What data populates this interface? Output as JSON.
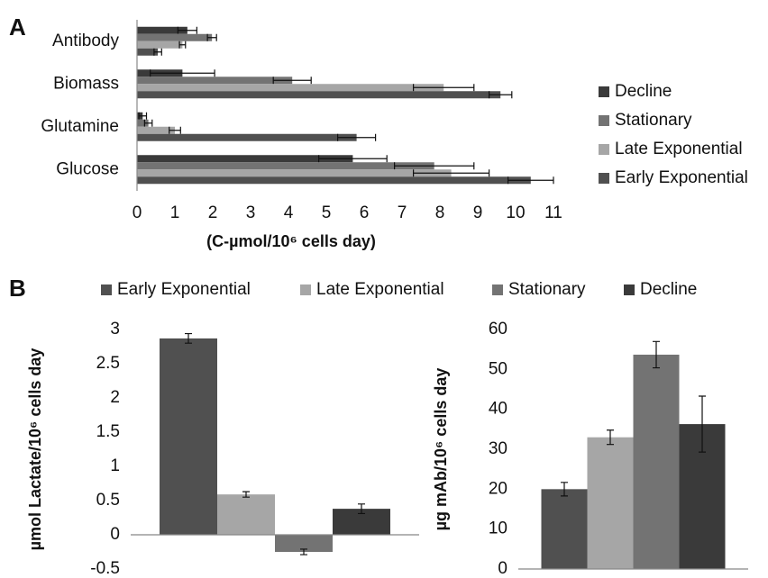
{
  "chart_data": [
    {
      "type": "hbar",
      "panel_label": "A",
      "categories": [
        "Antibody",
        "Biomass",
        "Glutamine",
        "Glucose"
      ],
      "series": [
        {
          "name": "Decline",
          "color": "#3a3a3a",
          "values": [
            1.33,
            1.2,
            0.15,
            5.7
          ],
          "error": [
            0.25,
            0.85,
            0.1,
            0.9
          ]
        },
        {
          "name": "Stationary",
          "color": "#737373",
          "values": [
            1.98,
            4.1,
            0.3,
            7.85
          ],
          "error": [
            0.12,
            0.5,
            0.1,
            1.05
          ]
        },
        {
          "name": "Late Exponential",
          "color": "#a6a6a6",
          "values": [
            1.2,
            8.1,
            1.0,
            8.3
          ],
          "error": [
            0.08,
            0.8,
            0.15,
            1.0
          ]
        },
        {
          "name": "Early Exponential",
          "color": "#505050",
          "values": [
            0.55,
            9.6,
            5.8,
            10.4
          ],
          "error": [
            0.1,
            0.3,
            0.5,
            0.6
          ]
        }
      ],
      "xlabel": "(C-µmol/10⁶ cells day)",
      "xlim": [
        0,
        11
      ],
      "xticks": [
        0,
        1,
        2,
        3,
        4,
        5,
        6,
        7,
        8,
        9,
        10,
        11
      ],
      "legend": "right"
    },
    {
      "type": "bar",
      "panel_label": "B",
      "categories": [
        null
      ],
      "series": [
        {
          "name": "Early Exponential",
          "color": "#505050",
          "values": [
            2.87
          ],
          "error": [
            0.07
          ]
        },
        {
          "name": "Late Exponential",
          "color": "#a6a6a6",
          "values": [
            0.59
          ],
          "error": [
            0.04
          ]
        },
        {
          "name": "Stationary",
          "color": "#737373",
          "values": [
            -0.25
          ],
          "error": [
            0.04
          ]
        },
        {
          "name": "Decline",
          "color": "#3a3a3a",
          "values": [
            0.38
          ],
          "error": [
            0.07
          ]
        }
      ],
      "ylabel": "µmol Lactate/10⁶ cells day",
      "ylim": [
        -0.5,
        3
      ],
      "yticks": [
        -0.5,
        0,
        0.5,
        1,
        1.5,
        2,
        2.5,
        3
      ],
      "legend": "top"
    },
    {
      "type": "bar",
      "categories": [
        null
      ],
      "series": [
        {
          "color": "#505050",
          "values": [
            20
          ],
          "error": [
            1.7
          ]
        },
        {
          "color": "#a6a6a6",
          "values": [
            33
          ],
          "error": [
            1.8
          ]
        },
        {
          "color": "#737373",
          "values": [
            53.7
          ],
          "error": [
            3.3
          ]
        },
        {
          "color": "#3a3a3a",
          "values": [
            36.3
          ],
          "error": [
            7
          ]
        }
      ],
      "ylabel": "µg mAb/10⁶ cells day",
      "ylim": [
        0,
        60
      ],
      "yticks": [
        0,
        10,
        20,
        30,
        40,
        50,
        60
      ]
    }
  ]
}
